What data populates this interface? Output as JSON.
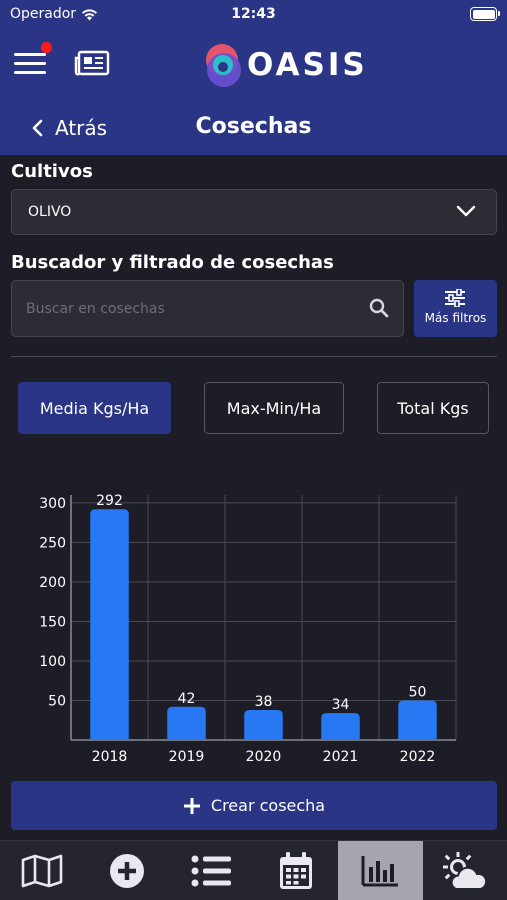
{
  "status_bar": {
    "carrier": "Operador",
    "time": "12:43"
  },
  "header": {
    "brand": "OASIS",
    "back_label": "Atrás",
    "title": "Cosechas"
  },
  "crops": {
    "label": "Cultivos",
    "selected": "OLIVO"
  },
  "search": {
    "label": "Buscador y filtrado de cosechas",
    "placeholder": "Buscar en cosechas",
    "filters_label": "Más filtros"
  },
  "tabs": [
    {
      "label": "Media Kgs/Ha",
      "active": true
    },
    {
      "label": "Max-Min/Ha",
      "active": false
    },
    {
      "label": "Total Kgs",
      "active": false
    }
  ],
  "chart_data": {
    "type": "bar",
    "categories": [
      "2018",
      "2019",
      "2020",
      "2021",
      "2022"
    ],
    "values": [
      292,
      42,
      38,
      34,
      50
    ],
    "ylim": [
      0,
      310
    ],
    "yticks": [
      50,
      100,
      150,
      200,
      250,
      300
    ],
    "grid": true,
    "color": "#2778f2"
  },
  "create_button": {
    "label": "Crear cosecha"
  },
  "tabbar": {
    "items": [
      "map-icon",
      "add-circle-icon",
      "list-icon",
      "calendar-icon",
      "chart-icon",
      "weather-icon"
    ],
    "active_index": 4
  },
  "colors": {
    "primary": "#2b3586",
    "background": "#1c1d27",
    "field": "#2b2c34",
    "bar": "#2778f2",
    "notification": "#ff1b1b"
  }
}
